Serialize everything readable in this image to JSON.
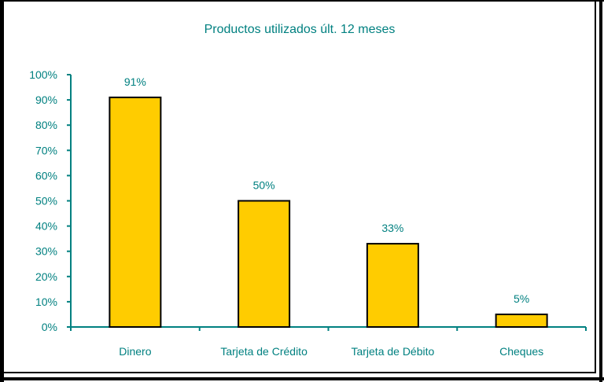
{
  "chart_data": {
    "type": "bar",
    "title": "Productos utilizados últ. 12 meses",
    "categories": [
      "Dinero",
      "Tarjeta de Crédito",
      "Tarjeta de Débito",
      "Cheques"
    ],
    "values": [
      91,
      50,
      33,
      5
    ],
    "data_labels": [
      "91%",
      "50%",
      "33%",
      "5%"
    ],
    "xlabel": "",
    "ylabel": "",
    "ylim": [
      0,
      100
    ],
    "yticks": [
      "0%",
      "10%",
      "20%",
      "30%",
      "40%",
      "50%",
      "60%",
      "70%",
      "80%",
      "90%",
      "100%"
    ],
    "grid": false,
    "legend": "none",
    "colors": {
      "bar": "#FFCC00",
      "bar_edge": "#000000",
      "text": "#008080",
      "axis": "#008080"
    }
  }
}
